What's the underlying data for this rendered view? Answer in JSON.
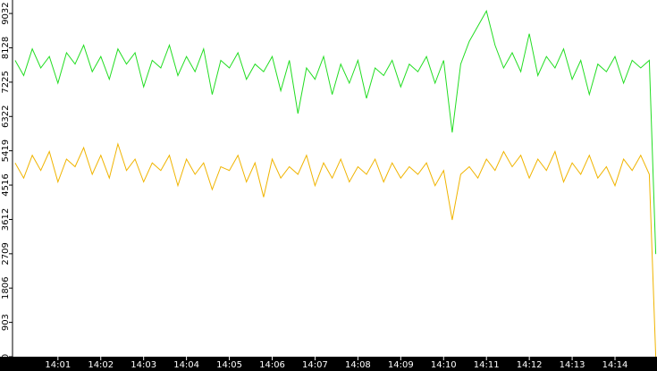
{
  "chart_data": {
    "type": "line",
    "x": [
      840.0,
      840.2,
      840.4,
      840.6,
      840.8,
      841.0,
      841.2,
      841.4,
      841.6,
      841.8,
      842.0,
      842.2,
      842.4,
      842.6,
      842.8,
      843.0,
      843.2,
      843.4,
      843.6,
      843.8,
      844.0,
      844.2,
      844.4,
      844.6,
      844.8,
      845.0,
      845.2,
      845.4,
      845.6,
      845.8,
      846.0,
      846.2,
      846.4,
      846.6,
      846.8,
      847.0,
      847.2,
      847.4,
      847.6,
      847.8,
      848.0,
      848.2,
      848.4,
      848.6,
      848.8,
      849.0,
      849.2,
      849.4,
      849.6,
      849.8,
      850.0,
      850.2,
      850.4,
      850.6,
      850.8,
      851.0,
      851.2,
      851.4,
      851.6,
      851.8,
      852.0,
      852.2,
      852.4,
      852.6,
      852.8,
      853.0,
      853.2,
      853.4,
      853.6,
      853.8,
      854.0,
      854.2,
      854.4,
      854.6,
      854.8,
      854.95
    ],
    "series": [
      {
        "color": "#22dd22",
        "values": [
          7800,
          7400,
          8100,
          7600,
          7900,
          7200,
          8000,
          7700,
          8200,
          7500,
          7900,
          7300,
          8100,
          7700,
          8000,
          7100,
          7800,
          7600,
          8200,
          7400,
          7900,
          7500,
          8100,
          6900,
          7800,
          7600,
          8000,
          7300,
          7700,
          7500,
          7900,
          7000,
          7800,
          6400,
          7600,
          7300,
          7900,
          6900,
          7700,
          7200,
          7800,
          6800,
          7600,
          7400,
          7800,
          7100,
          7700,
          7500,
          7900,
          7200,
          7800,
          5900,
          7700,
          8300,
          8700,
          9100,
          8200,
          7600,
          8000,
          7500,
          8500,
          7400,
          7900,
          7600,
          8100,
          7300,
          7800,
          6900,
          7700,
          7500,
          7900,
          7200,
          7800,
          7600,
          7800,
          2700
        ]
      },
      {
        "color": "#f0b400",
        "values": [
          5100,
          4700,
          5300,
          4900,
          5400,
          4600,
          5200,
          5000,
          5500,
          4800,
          5300,
          4700,
          5600,
          4900,
          5200,
          4600,
          5100,
          4900,
          5300,
          4500,
          5200,
          4800,
          5100,
          4400,
          5000,
          4900,
          5300,
          4600,
          5100,
          4200,
          5200,
          4700,
          5000,
          4800,
          5300,
          4500,
          5100,
          4700,
          5200,
          4600,
          5000,
          4800,
          5200,
          4600,
          5100,
          4700,
          5000,
          4800,
          5100,
          4500,
          4900,
          3600,
          4800,
          5000,
          4700,
          5200,
          4900,
          5400,
          5000,
          5300,
          4700,
          5200,
          4900,
          5400,
          4600,
          5100,
          4800,
          5300,
          4700,
          5000,
          4500,
          5200,
          4900,
          5300,
          4800,
          0
        ]
      }
    ],
    "xlim": [
      839.94,
      854.98
    ],
    "xticks": [
      {
        "value": 841,
        "label": "14:01"
      },
      {
        "value": 842,
        "label": "14:02"
      },
      {
        "value": 843,
        "label": "14:03"
      },
      {
        "value": 844,
        "label": "14:04"
      },
      {
        "value": 845,
        "label": "14:05"
      },
      {
        "value": 846,
        "label": "14:06"
      },
      {
        "value": 847,
        "label": "14:07"
      },
      {
        "value": 848,
        "label": "14:08"
      },
      {
        "value": 849,
        "label": "14:09"
      },
      {
        "value": 850,
        "label": "14:10"
      },
      {
        "value": 851,
        "label": "14:11"
      },
      {
        "value": 852,
        "label": "14:12"
      },
      {
        "value": 853,
        "label": "14:13"
      },
      {
        "value": 854,
        "label": "14:14"
      }
    ],
    "ylim": [
      0,
      9387
    ],
    "yticks": [
      0,
      903,
      1806,
      2709,
      3612,
      4516,
      5419,
      6322,
      7225,
      8128,
      9032
    ]
  }
}
